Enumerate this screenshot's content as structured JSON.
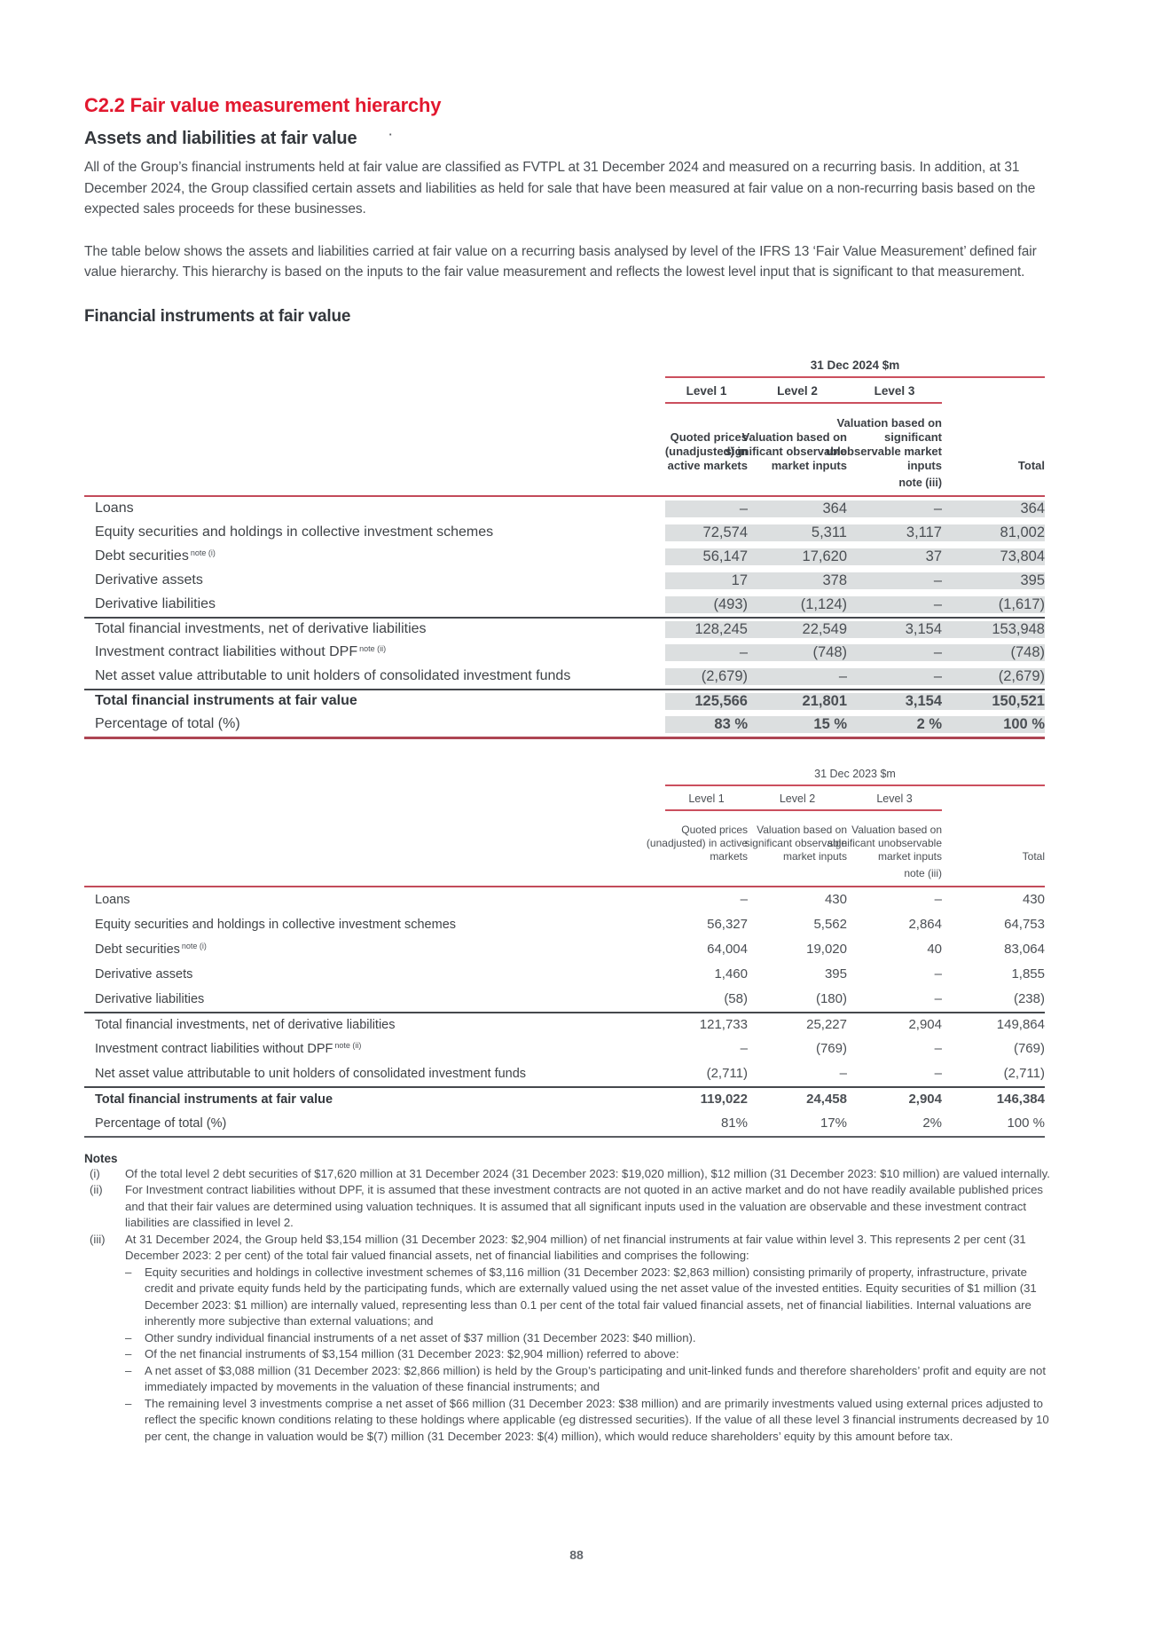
{
  "page": {
    "number": "88"
  },
  "header": {
    "section_title": "C2.2 Fair value measurement hierarchy",
    "subsection_title": "Assets and liabilities at fair value",
    "dot": "·"
  },
  "intro": {
    "para1": "All of the Group’s financial instruments held at fair value are classified as FVTPL at 31 December 2024 and measured on a recurring basis. In addition, at 31 December 2024, the Group classified certain assets and liabilities as held for sale that have been measured at fair value on a non-recurring basis based on the expected sales proceeds for these businesses.",
    "para2": "The table below shows the assets and liabilities carried at fair value on a recurring basis analysed by level of the IFRS 13 ‘Fair Value Measurement’ defined fair value hierarchy. This hierarchy is based on the inputs to the fair value measurement and reflects the lowest level input that is significant to that measurement.",
    "table_heading": "Financial instruments at fair value"
  },
  "colors": {
    "accent_red": "#e2182f",
    "rule_red": "#cb4f5e",
    "dark_rule": "#45484d",
    "shade_gray": "#dcdfe0"
  },
  "tables": [
    {
      "id": "t2024",
      "period_label": "31 Dec 2024 $m",
      "levels": [
        "Level 1",
        "Level 2",
        "Level 3"
      ],
      "col_descriptions": [
        "Quoted prices (unadjusted) in active markets",
        "Valuation based on significant observable market inputs",
        "Valuation based on significant unobservable market inputs",
        "Total"
      ],
      "note_ref": "note (iii)",
      "shaded": true,
      "rows": [
        {
          "label": "Loans",
          "values": [
            "–",
            "364",
            "–",
            "364"
          ]
        },
        {
          "label": "Equity securities and holdings in collective investment schemes",
          "values": [
            "72,574",
            "5,311",
            "3,117",
            "81,002"
          ]
        },
        {
          "label": "Debt securities",
          "sup": "note (i)",
          "values": [
            "56,147",
            "17,620",
            "37",
            "73,804"
          ]
        },
        {
          "label": "Derivative assets",
          "values": [
            "17",
            "378",
            "–",
            "395"
          ]
        },
        {
          "label": "Derivative liabilities",
          "values": [
            "(493)",
            "(1,124)",
            "–",
            "(1,617)"
          ]
        },
        {
          "label": "Total financial investments, net of derivative liabilities",
          "rule_top": true,
          "values": [
            "128,245",
            "22,549",
            "3,154",
            "153,948"
          ]
        },
        {
          "label": "Investment contract liabilities without DPF",
          "sup": "note (ii)",
          "values": [
            "–",
            "(748)",
            "–",
            "(748)"
          ]
        },
        {
          "label": "Net asset value attributable to unit holders of consolidated investment funds",
          "values": [
            "(2,679)",
            "–",
            "–",
            "(2,679)"
          ]
        },
        {
          "label": "Total financial instruments at fair value",
          "rule_top": true,
          "bold": true,
          "values": [
            "125,566",
            "21,801",
            "3,154",
            "150,521"
          ]
        },
        {
          "label": "Percentage of total (%)",
          "bold_values": true,
          "values": [
            "83 %",
            "15 %",
            "2 %",
            "100 %"
          ]
        }
      ]
    },
    {
      "id": "t2023",
      "period_label": "31 Dec 2023 $m",
      "levels": [
        "Level 1",
        "Level 2",
        "Level 3"
      ],
      "col_descriptions": [
        "Quoted prices (unadjusted) in active markets",
        "Valuation based on significant observable market inputs",
        "Valuation based on significant unobservable market inputs",
        "Total"
      ],
      "note_ref": "note (iii)",
      "shaded": false,
      "rows": [
        {
          "label": "Loans",
          "values": [
            "–",
            "430",
            "–",
            "430"
          ]
        },
        {
          "label": "Equity securities and holdings in collective investment schemes",
          "values": [
            "56,327",
            "5,562",
            "2,864",
            "64,753"
          ]
        },
        {
          "label": "Debt securities",
          "sup": "note (i)",
          "values": [
            "64,004",
            "19,020",
            "40",
            "83,064"
          ]
        },
        {
          "label": "Derivative assets",
          "values": [
            "1,460",
            "395",
            "–",
            "1,855"
          ]
        },
        {
          "label": "Derivative liabilities",
          "values": [
            "(58)",
            "(180)",
            "–",
            "(238)"
          ]
        },
        {
          "label": "Total financial investments, net of derivative liabilities",
          "rule_top": true,
          "values": [
            "121,733",
            "25,227",
            "2,904",
            "149,864"
          ]
        },
        {
          "label": "Investment contract liabilities without DPF",
          "sup": "note (ii)",
          "values": [
            "–",
            "(769)",
            "–",
            "(769)"
          ]
        },
        {
          "label": "Net asset value attributable to unit holders of consolidated investment funds",
          "values": [
            "(2,711)",
            "–",
            "–",
            "(2,711)"
          ]
        },
        {
          "label": "Total financial instruments at fair value",
          "rule_top": true,
          "bold": true,
          "values": [
            "119,022",
            "24,458",
            "2,904",
            "146,384"
          ]
        },
        {
          "label": "Percentage of total (%)",
          "values": [
            "81%",
            "17%",
            "2%",
            "100 %"
          ]
        }
      ]
    }
  ],
  "notes": {
    "title": "Notes",
    "bullet_glyph": "–",
    "items": [
      {
        "marker": "(i)",
        "text": "Of the total level 2 debt securities of $17,620 million at 31 December 2024 (31 December 2023: $19,020 million), $12 million (31 December 2023: $10 million) are valued internally."
      },
      {
        "marker": "(ii)",
        "text": "For Investment contract liabilities without DPF, it is assumed that these investment contracts are not quoted in an active market and do not have readily available published prices and that their fair values are determined using valuation techniques. It is assumed that all significant inputs used in the valuation are observable and these investment contract liabilities are classified in level 2."
      },
      {
        "marker": "(iii)",
        "text": "At 31 December 2024, the Group held $3,154 million (31 December 2023: $2,904 million) of net financial instruments at fair value within level 3. This represents 2 per cent (31 December 2023: 2 per cent) of the total fair valued financial assets, net of financial liabilities and comprises the following:",
        "bullets": [
          "Equity securities and holdings in collective investment schemes of $3,116 million (31 December 2023: $2,863 million) consisting primarily of property, infrastructure, private credit and private equity funds held by the participating funds, which are externally valued using the net asset value of the invested entities. Equity securities of $1 million (31 December 2023: $1 million) are internally valued, representing less than 0.1 per cent of the total fair valued financial assets, net of financial liabilities. Internal valuations are inherently more subjective than external valuations; and",
          "Other sundry individual financial instruments of a net asset of $37 million (31 December 2023: $40 million).",
          "Of the net financial instruments of $3,154 million (31 December 2023: $2,904 million) referred to above:",
          "A net asset of $3,088 million (31 December 2023: $2,866 million) is held by the Group’s participating and unit-linked funds and therefore shareholders’ profit and equity are not immediately impacted by movements in the valuation of these financial instruments; and",
          "The remaining level 3 investments comprise a net asset of $66 million (31 December 2023: $38 million) and are primarily investments valued using external prices adjusted to reflect the specific known conditions relating to these holdings where applicable (eg distressed securities). If the value of all these level 3 financial instruments decreased by 10 per cent, the change in valuation would be $(7) million (31 December 2023: $(4) million), which would reduce shareholders’ equity by this amount before tax."
        ]
      }
    ]
  }
}
